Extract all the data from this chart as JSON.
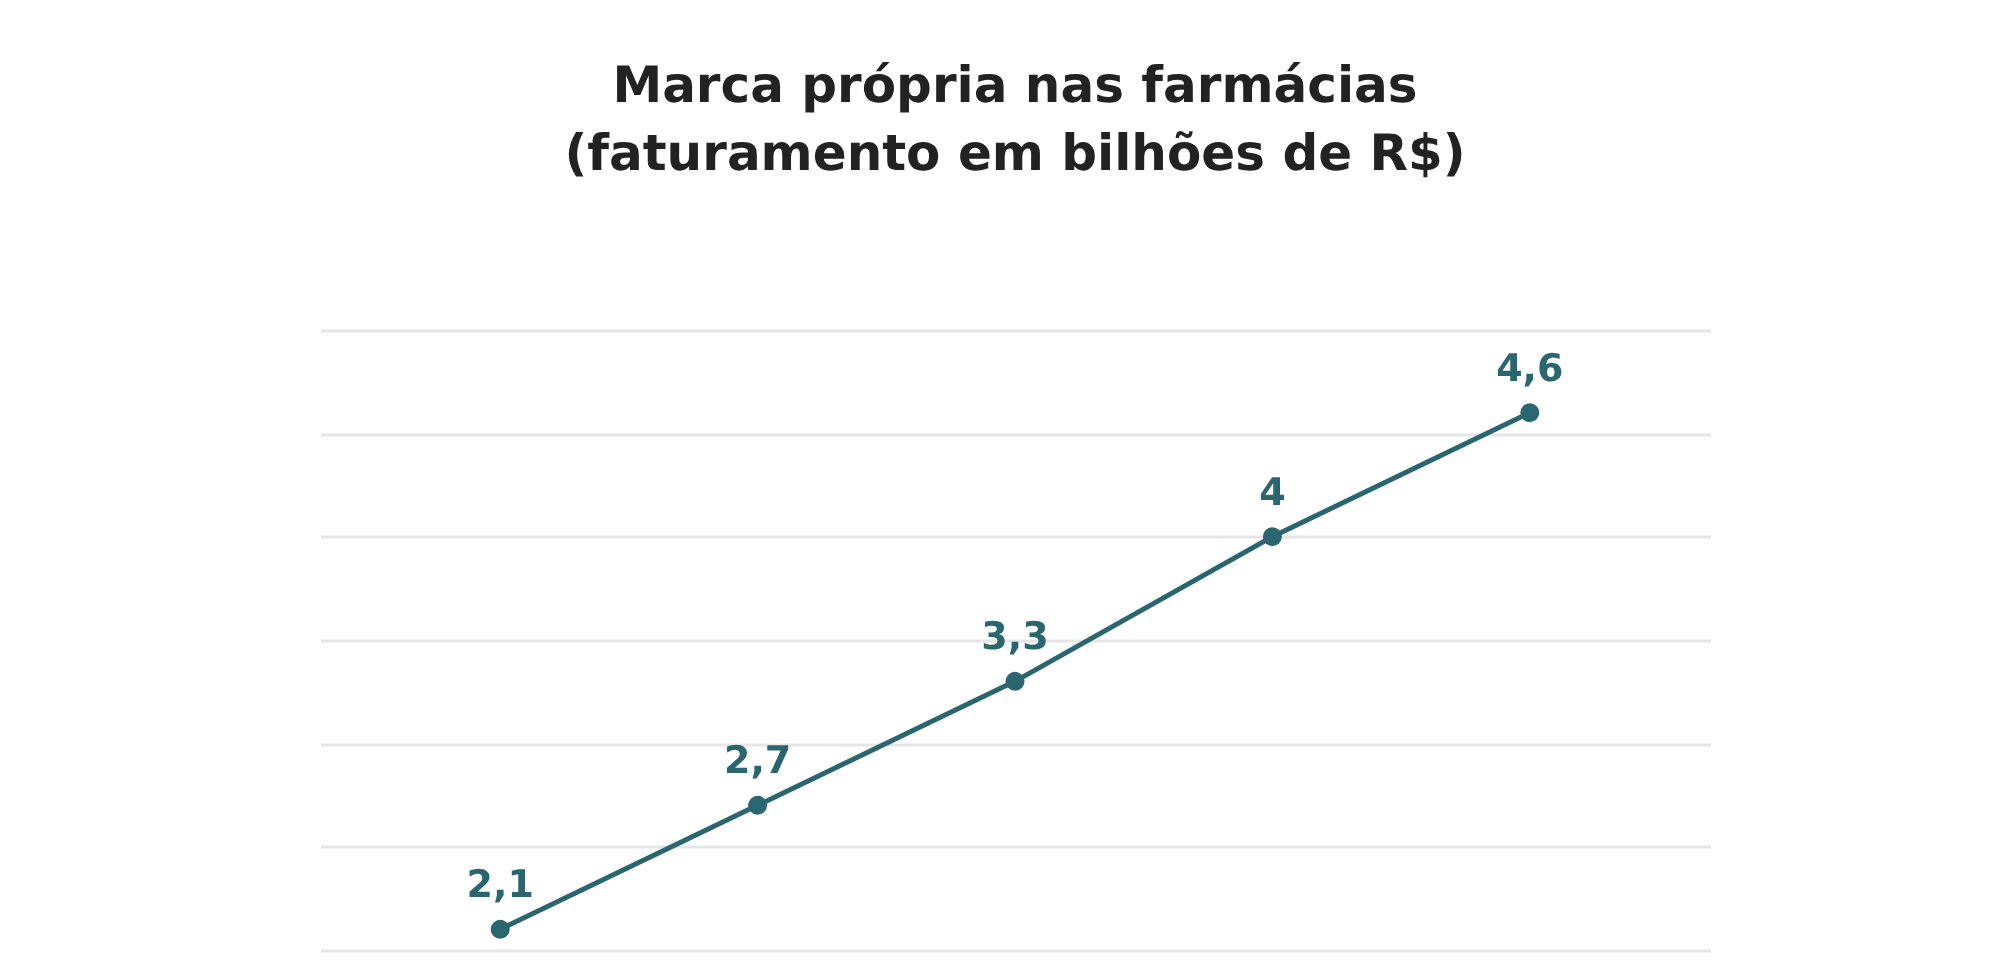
{
  "chart_data": {
    "type": "line",
    "title": [
      "Marca própria nas farmácias",
      "(faturamento em bilhões de R$)"
    ],
    "categories": [
      null,
      null,
      null,
      null,
      null
    ],
    "series": [
      {
        "color": "#2a6670",
        "values": [
          2.1,
          2.7,
          3.3,
          4,
          4.6
        ],
        "value_labels": [
          "2,1",
          "2,7",
          "3,3",
          "4",
          "4,6"
        ]
      }
    ],
    "ylim": [
      2,
      5
    ],
    "yticks": [
      {
        "value": 2,
        "label": null
      },
      {
        "value": 2.5,
        "label": null
      },
      {
        "value": 3,
        "label": null
      },
      {
        "value": 3.5,
        "label": null
      },
      {
        "value": 4,
        "label": null
      },
      {
        "value": 4.5,
        "label": null
      },
      {
        "value": 5,
        "label": null
      }
    ],
    "grid": "y",
    "marker": "circle",
    "legend": false
  }
}
